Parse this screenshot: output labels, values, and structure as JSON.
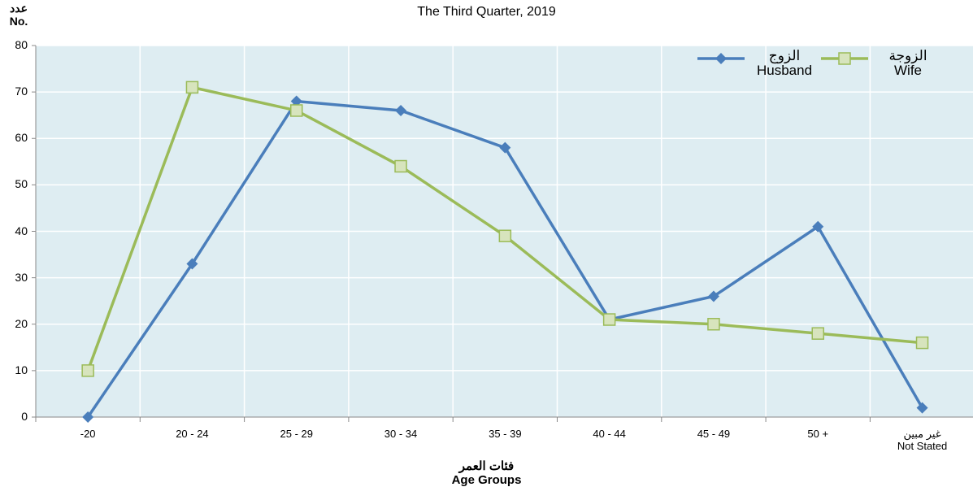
{
  "chart_data": {
    "type": "line",
    "title": "The Third Quarter, 2019",
    "y_label": "عدد\nNo.",
    "x_label": "فئات العمر\nAge Groups",
    "categories": [
      "-20",
      "20 - 24",
      "25 - 29",
      "30 - 34",
      "35 - 39",
      "40 - 44",
      "45 - 49",
      "50 +",
      "غير مبين\nNot Stated"
    ],
    "series": [
      {
        "name": "الزوج\nHusband",
        "color": "#4a7ebb",
        "marker": "diamond",
        "values": [
          0,
          33,
          68,
          66,
          58,
          21,
          26,
          41,
          2
        ]
      },
      {
        "name": "الزوجة\nWife",
        "color": "#9bbb59",
        "marker": "square",
        "values": [
          10,
          71,
          66,
          54,
          39,
          21,
          20,
          18,
          16
        ]
      }
    ],
    "ylim": [
      0,
      80
    ],
    "yticks": [
      0,
      10,
      20,
      30,
      40,
      50,
      60,
      70,
      80
    ],
    "grid": true
  }
}
